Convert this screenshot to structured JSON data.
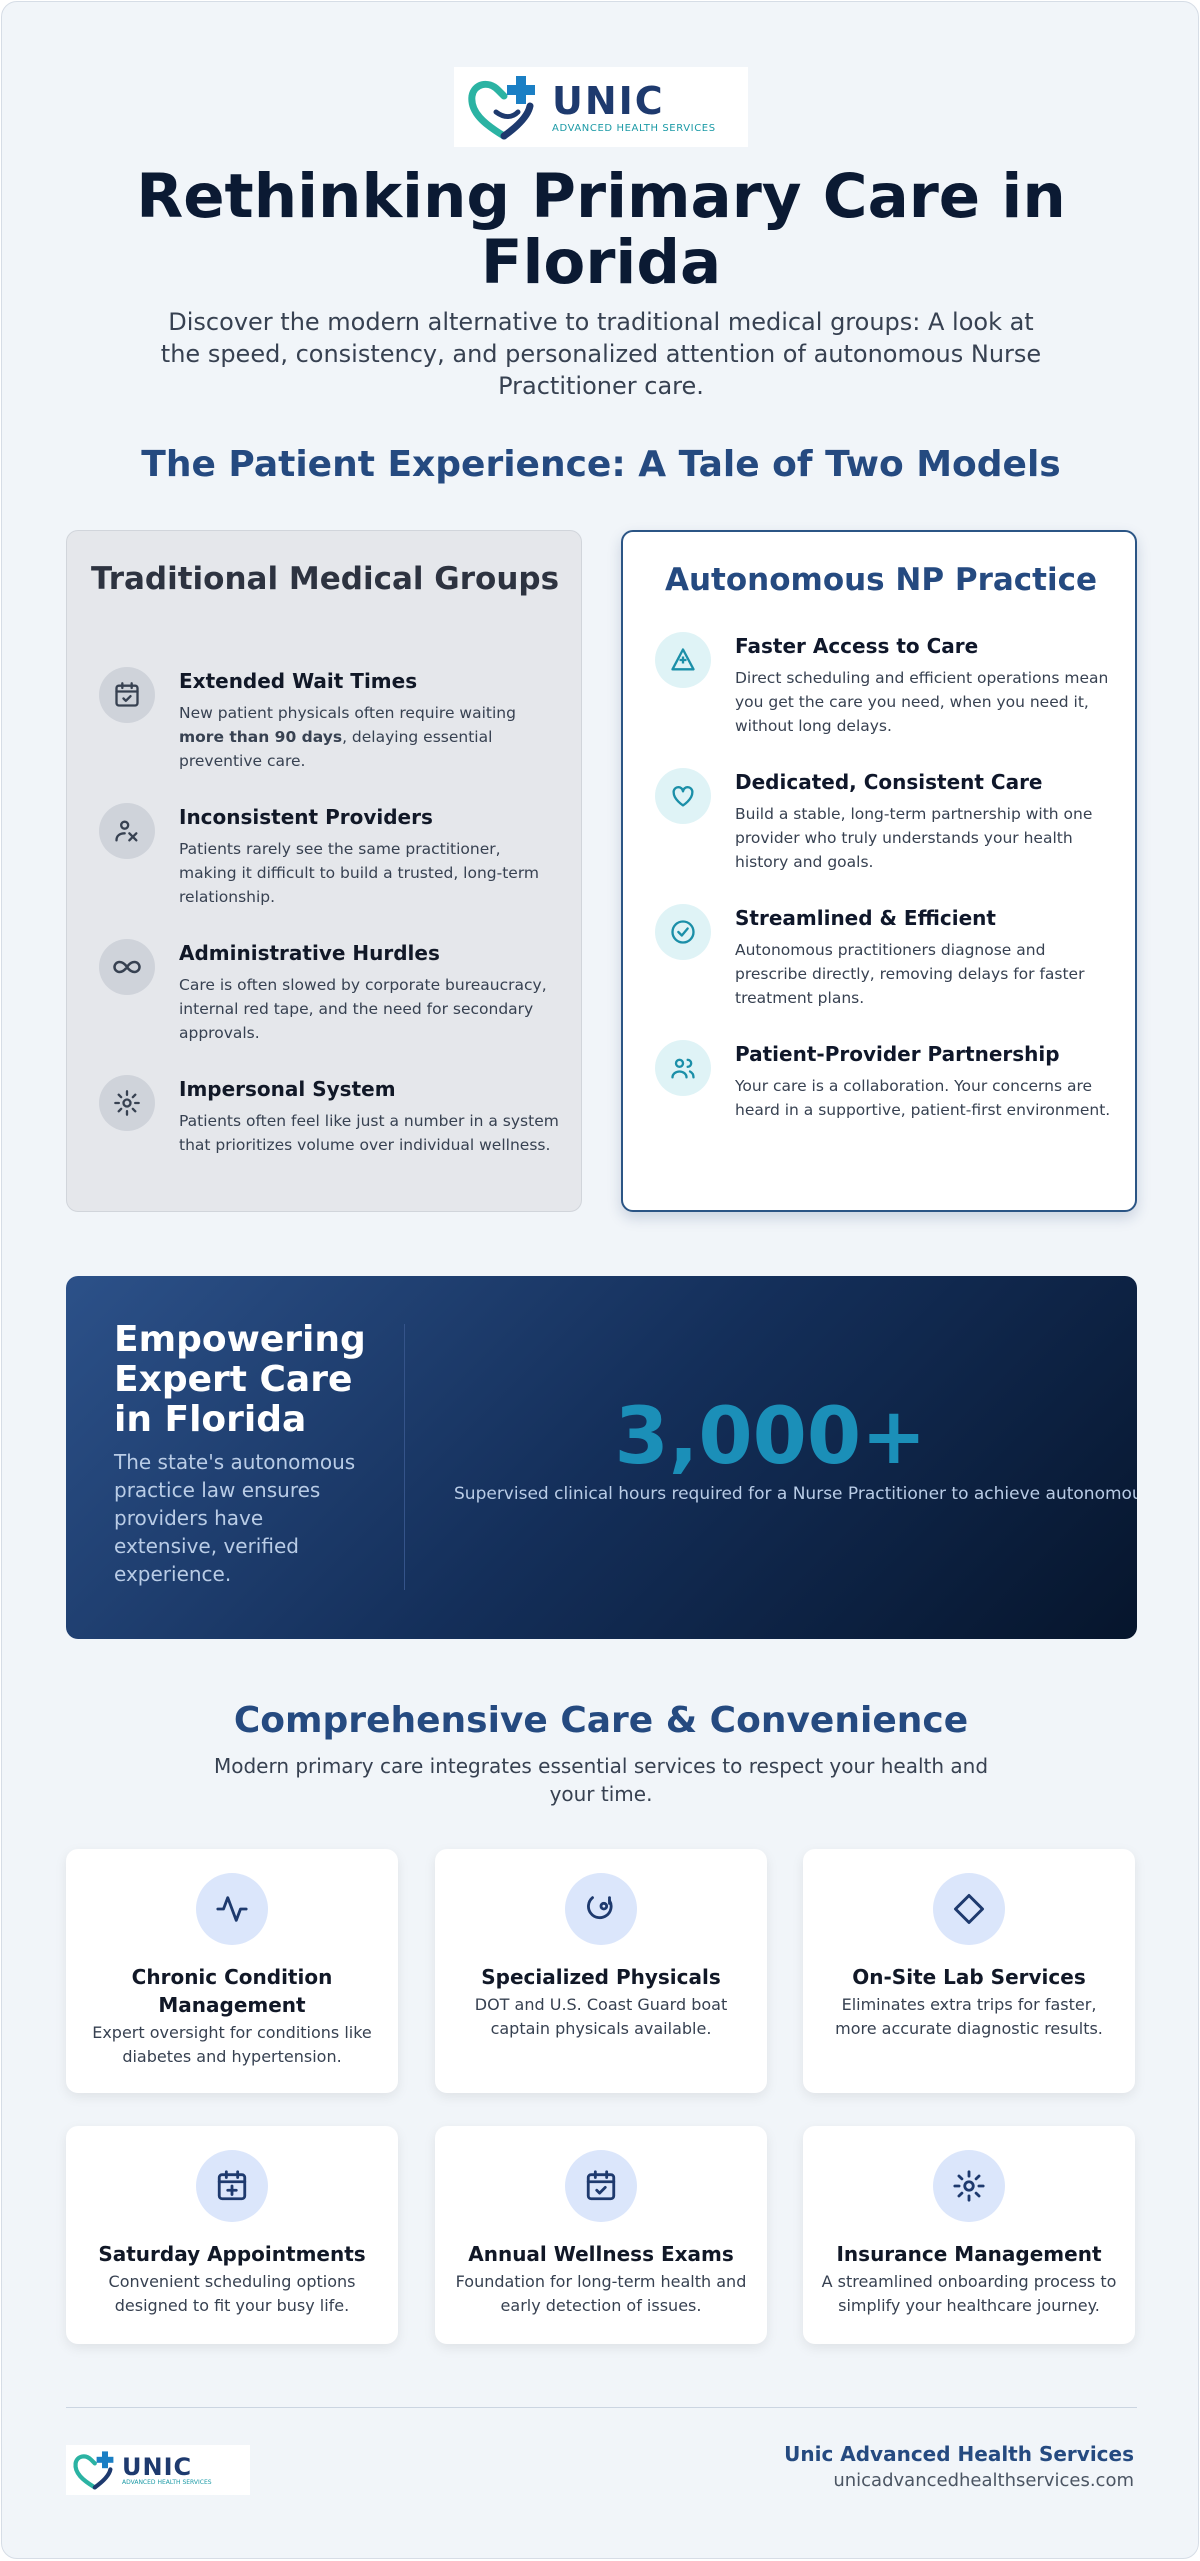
{
  "header": {
    "logo": {
      "name": "UNIC",
      "tagline": "ADVANCED HEALTH SERVICES"
    },
    "title": "Rethinking Primary Care in Florida",
    "subtitle": "Discover the modern alternative to traditional medical groups: A look at the speed, consistency, and personalized attention of autonomous Nurse Practitioner care."
  },
  "comparison": {
    "title": "The Patient Experience: A Tale of Two Models",
    "traditional": {
      "heading": "Traditional Medical Groups",
      "items": [
        {
          "icon": "calendar-check-icon",
          "title": "Extended Wait Times",
          "desc_before": "New patient physicals often require waiting ",
          "desc_bold": "more than 90 days",
          "desc_after": ", delaying essential preventive care."
        },
        {
          "icon": "person-rotate-icon",
          "title": "Inconsistent Providers",
          "desc": "Patients rarely see the same practitioner, making it difficult to build a trusted, long-term relationship."
        },
        {
          "icon": "infinity-icon",
          "title": "Administrative Hurdles",
          "desc": "Care is often slowed by corporate bureaucracy, internal red tape, and the need for secondary approvals."
        },
        {
          "icon": "gear-icon",
          "title": "Impersonal System",
          "desc": "Patients often feel like just a number in a system that prioritizes volume over individual wellness."
        }
      ]
    },
    "np": {
      "heading": "Autonomous NP Practice",
      "items": [
        {
          "icon": "triangle-icon",
          "title": "Faster Access to Care",
          "desc": "Direct scheduling and efficient operations mean you get the care you need, when you need it, without long delays."
        },
        {
          "icon": "heart-icon",
          "title": "Dedicated, Consistent Care",
          "desc": "Build a stable, long-term partnership with one provider who truly understands your health history and goals."
        },
        {
          "icon": "check-circle-icon",
          "title": "Streamlined & Efficient",
          "desc": "Autonomous practitioners diagnose and prescribe directly, removing delays for faster treatment plans."
        },
        {
          "icon": "users-icon",
          "title": "Patient-Provider Partnership",
          "desc": "Your care is a collaboration. Your concerns are heard in a supportive, patient-first environment."
        }
      ]
    }
  },
  "banner": {
    "title": "Empowering Expert Care in Florida",
    "text": "The state's autonomous practice law ensures providers have extensive, verified experience.",
    "stat": "3,000+",
    "stat_label": "Supervised clinical hours required for a Nurse Practitioner to achieve autonomous"
  },
  "services": {
    "title": "Comprehensive Care & Convenience",
    "subtitle": "Modern primary care integrates essential services to respect your health and your time.",
    "items": [
      {
        "icon": "activity-icon",
        "title": "Chronic Condition Management",
        "desc": "Expert oversight for conditions like diabetes and hypertension."
      },
      {
        "icon": "stethoscope-icon",
        "title": "Specialized Physicals",
        "desc": "DOT and U.S. Coast Guard boat captain physicals available."
      },
      {
        "icon": "diamond-icon",
        "title": "On-Site Lab Services",
        "desc": "Eliminates extra trips for faster, more accurate diagnostic results."
      },
      {
        "icon": "calendar-plus-icon",
        "title": "Saturday Appointments",
        "desc": "Convenient scheduling options designed to fit your busy life."
      },
      {
        "icon": "calendar-check-icon",
        "title": "Annual Wellness Exams",
        "desc": "Foundation for long-term health and early detection of issues."
      },
      {
        "icon": "gear-icon",
        "title": "Insurance Management",
        "desc": "A streamlined onboarding process to simplify your healthcare journey."
      }
    ]
  },
  "footer": {
    "logo": {
      "name": "UNIC",
      "tagline": "ADVANCED HEALTH SERVICES"
    },
    "company": "Unic Advanced Health Services",
    "url": "unicadvancedhealthservices.com"
  },
  "colors": {
    "navy": "#254a80",
    "teal": "#1b8fb8",
    "background": "#f1f5f9"
  }
}
